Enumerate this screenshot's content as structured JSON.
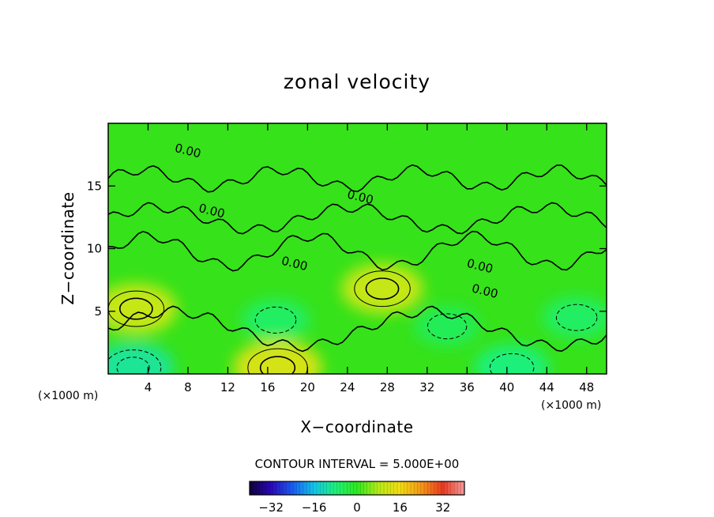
{
  "chart_data": {
    "type": "heatmap",
    "title": "zonal velocity",
    "xlabel": "X−coordinate",
    "ylabel": "Z−coordinate",
    "x_unit": "(×1000 m)",
    "y_unit": "(×1000 m)",
    "xlim": [
      0,
      50
    ],
    "ylim": [
      0,
      20
    ],
    "x_ticks": [
      4,
      8,
      12,
      16,
      20,
      24,
      28,
      32,
      36,
      40,
      44,
      48
    ],
    "x_tick_labels": [
      "4",
      "8",
      "12",
      "16",
      "20",
      "24",
      "28",
      "32",
      "36",
      "40",
      "44",
      "48"
    ],
    "y_ticks": [
      5,
      10,
      15
    ],
    "y_tick_labels": [
      "5",
      "10",
      "15"
    ],
    "contour_interval_text": "CONTOUR INTERVAL = 5.000E+00",
    "contour_interval": 5,
    "contour_labels": [
      {
        "text": "0.00",
        "x": 7.9,
        "z": 17.5
      },
      {
        "text": "0.00",
        "x": 25.2,
        "z": 13.8
      },
      {
        "text": "0.00",
        "x": 10.3,
        "z": 12.7
      },
      {
        "text": "0.00",
        "x": 18.6,
        "z": 8.5
      },
      {
        "text": "0.00",
        "x": 37.2,
        "z": 8.3
      },
      {
        "text": "0.00",
        "x": 37.7,
        "z": 6.3
      }
    ],
    "features": [
      {
        "kind": "max",
        "x": 2.8,
        "z": 5.2,
        "value": 10
      },
      {
        "kind": "max",
        "x": 27.5,
        "z": 6.8,
        "value": 10
      },
      {
        "kind": "max",
        "x": 17.0,
        "z": 0.5,
        "value": 12
      },
      {
        "kind": "min",
        "x": 16.8,
        "z": 4.3,
        "value": -6
      },
      {
        "kind": "min",
        "x": 2.5,
        "z": 0.5,
        "value": -10
      },
      {
        "kind": "min",
        "x": 40.5,
        "z": 0.5,
        "value": -8
      },
      {
        "kind": "min",
        "x": 34.0,
        "z": 3.8,
        "value": -5
      },
      {
        "kind": "min",
        "x": 47.0,
        "z": 4.5,
        "value": -6
      }
    ],
    "colorbar": {
      "min": -40,
      "max": 40,
      "ticks": [
        -32,
        -16,
        0,
        16,
        32
      ],
      "tick_labels": [
        "−32",
        "−16",
        "0",
        "16",
        "32"
      ],
      "colormap": [
        "#10003a",
        "#2a08b8",
        "#1a5cf0",
        "#12c4e8",
        "#1ef07a",
        "#2de81e",
        "#b6ea16",
        "#f2dc10",
        "#f49618",
        "#e83a22",
        "#f49a9a"
      ]
    }
  }
}
